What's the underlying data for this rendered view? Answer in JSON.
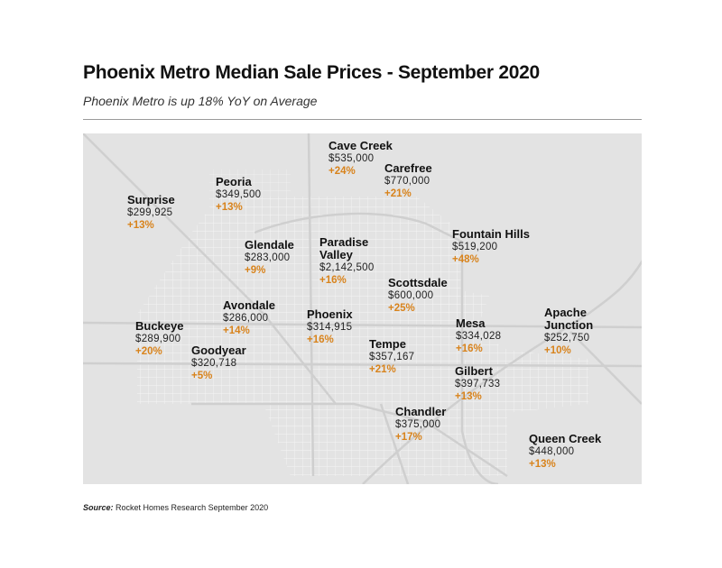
{
  "title": "Phoenix Metro Median Sale Prices - September 2020",
  "subtitle": "Phoenix Metro is up 18% YoY on Average",
  "accent_color": "#d8831c",
  "cities": [
    {
      "name": "Cave Creek",
      "price": "$535,000",
      "change": "+24%"
    },
    {
      "name": "Carefree",
      "price": "$770,000",
      "change": "+21%"
    },
    {
      "name": "Peoria",
      "price": "$349,500",
      "change": "+13%"
    },
    {
      "name": "Surprise",
      "price": "$299,925",
      "change": "+13%"
    },
    {
      "name": "Fountain Hills",
      "price": "$519,200",
      "change": "+48%"
    },
    {
      "name": "Glendale",
      "price": "$283,000",
      "change": "+9%"
    },
    {
      "name": "Paradise Valley",
      "name_line1": "Paradise",
      "name_line2": "Valley",
      "price": "$2,142,500",
      "change": "+16%"
    },
    {
      "name": "Scottsdale",
      "price": "$600,000",
      "change": "+25%"
    },
    {
      "name": "Avondale",
      "price": "$286,000",
      "change": "+14%"
    },
    {
      "name": "Apache Junction",
      "name_line1": "Apache",
      "name_line2": "Junction",
      "price": "$252,750",
      "change": "+10%"
    },
    {
      "name": "Phoenix",
      "price": "$314,915",
      "change": "+16%"
    },
    {
      "name": "Mesa",
      "price": "$334,028",
      "change": "+16%"
    },
    {
      "name": "Buckeye",
      "price": "$289,900",
      "change": "+20%"
    },
    {
      "name": "Goodyear",
      "price": "$320,718",
      "change": "+5%"
    },
    {
      "name": "Tempe",
      "price": "$357,167",
      "change": "+21%"
    },
    {
      "name": "Gilbert",
      "price": "$397,733",
      "change": "+13%"
    },
    {
      "name": "Chandler",
      "price": "$375,000",
      "change": "+17%"
    },
    {
      "name": "Queen Creek",
      "price": "$448,000",
      "change": "+13%"
    }
  ],
  "source": {
    "label": "Source:",
    "text": "Rocket Homes Research September 2020"
  }
}
